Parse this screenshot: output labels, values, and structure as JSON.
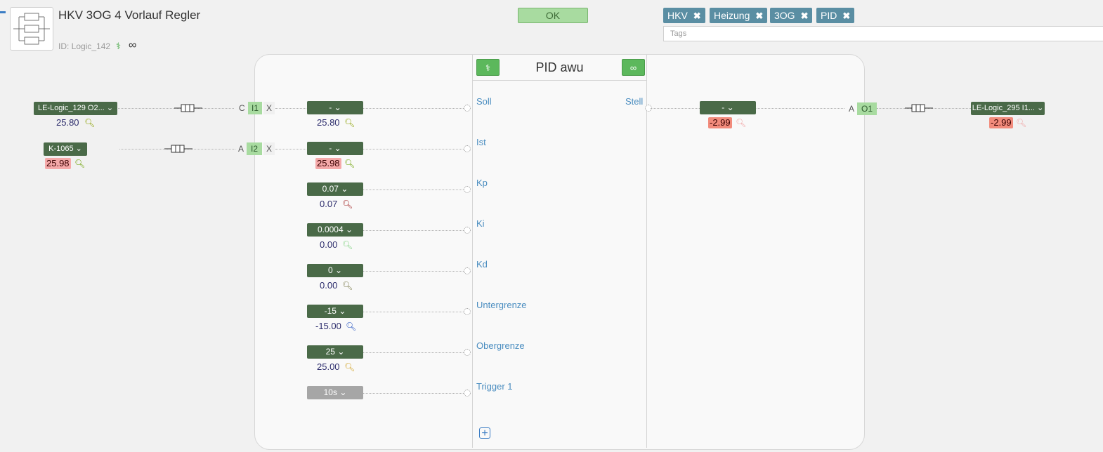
{
  "header": {
    "title": "HKV 3OG 4 Vorlauf Regler",
    "logic_id": "ID: Logic_142",
    "ok_label": "OK"
  },
  "tags": {
    "items": [
      "HKV",
      "Heizung",
      "3OG",
      "PID"
    ],
    "placeholder": "Tags"
  },
  "block": {
    "title": "PID awu",
    "left_btn_icon": "stethoscope-icon",
    "right_btn_icon": "infinity-icon",
    "inputs": [
      "Soll",
      "Ist",
      "Kp",
      "Ki",
      "Kd",
      "Untergrenze",
      "Obergrenze",
      "Trigger 1"
    ],
    "outputs": [
      "Stell"
    ]
  },
  "sources": {
    "s1": {
      "label": "LE-Logic_129 O2...",
      "value": "25.80",
      "type": "C",
      "io": "I1",
      "x": "X"
    },
    "s2": {
      "label": "K-1065",
      "value": "25.98",
      "type": "A",
      "io": "I2",
      "x": "X"
    }
  },
  "params": [
    {
      "label": "-",
      "value": "25.80"
    },
    {
      "label": "-",
      "value": "25.98"
    },
    {
      "label": "0.07",
      "value": "0.07"
    },
    {
      "label": "0.0004",
      "value": "0.00"
    },
    {
      "label": "0",
      "value": "0.00"
    },
    {
      "label": "-15",
      "value": "-15.00"
    },
    {
      "label": "25",
      "value": "25.00"
    },
    {
      "label": "10s",
      "value": ""
    }
  ],
  "output": {
    "selector_label": "-",
    "value": "-2.99",
    "type": "A",
    "io": "O1",
    "target_label": "LE-Logic_295 I1...",
    "target_value": "-2.99"
  },
  "colors": {
    "accent_green": "#5cb85c",
    "dark_green": "#4a6a48",
    "tag_blue": "#5a8ea3",
    "alarm_red": "#f28b7c"
  }
}
